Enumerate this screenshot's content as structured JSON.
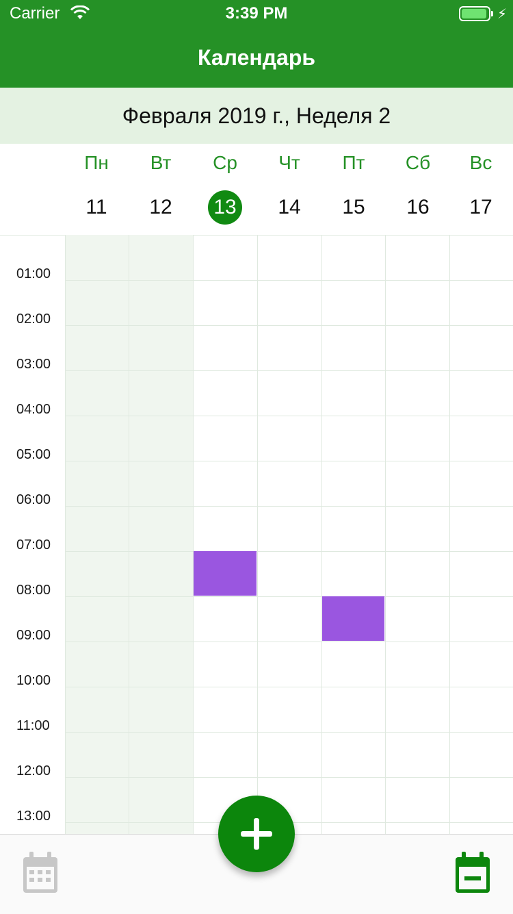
{
  "status_bar": {
    "carrier": "Carrier",
    "time": "3:39 PM",
    "battery_level": 0.95
  },
  "nav": {
    "title": "Календарь"
  },
  "week_header": {
    "label": "Февраля 2019 г., Неделя 2"
  },
  "days": [
    {
      "name": "Пн",
      "number": "11"
    },
    {
      "name": "Вт",
      "number": "12"
    },
    {
      "name": "Ср",
      "number": "13",
      "selected": true
    },
    {
      "name": "Чт",
      "number": "14"
    },
    {
      "name": "Пт",
      "number": "15"
    },
    {
      "name": "Сб",
      "number": "16"
    },
    {
      "name": "Вс",
      "number": "17"
    }
  ],
  "hours": [
    "01:00",
    "02:00",
    "03:00",
    "04:00",
    "05:00",
    "06:00",
    "07:00",
    "08:00",
    "09:00",
    "10:00",
    "11:00",
    "12:00",
    "13:00"
  ],
  "events": [
    {
      "day": "Ср",
      "start": "07:00",
      "end": "08:00",
      "color": "#9a56e0"
    },
    {
      "day": "Пт",
      "start": "08:00",
      "end": "09:00",
      "color": "#9a56e0"
    }
  ],
  "colors": {
    "brand": "#259126",
    "week_header_bg": "#e4f2e2",
    "selected_day": "#118a12",
    "past_day_bg": "#f0f6ef",
    "event": "#9a56e0"
  },
  "tabbar": {
    "left_icon": "calendar-month-icon",
    "center_icon": "plus-icon",
    "right_icon": "calendar-day-icon"
  }
}
